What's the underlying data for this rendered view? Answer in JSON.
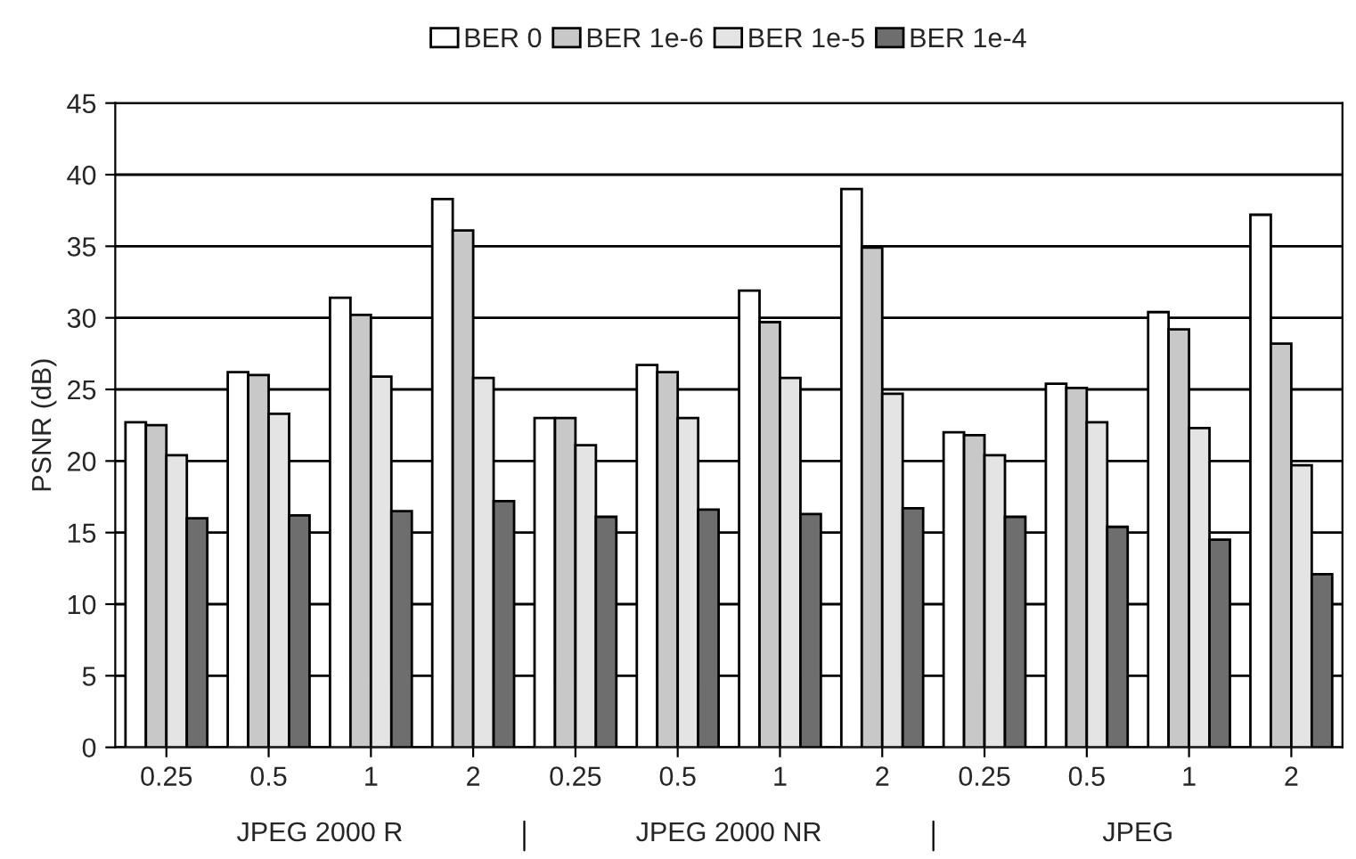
{
  "chart_data": {
    "type": "bar",
    "ylabel": "PSNR (dB)",
    "categories": [
      "0.25",
      "0.5",
      "1",
      "2",
      "0.25",
      "0.5",
      "1",
      "2",
      "0.25",
      "0.5",
      "1",
      "2"
    ],
    "series": [
      {
        "name": "BER 0",
        "color": "#ffffff",
        "values": [
          22.7,
          26.2,
          31.4,
          38.3,
          23.0,
          26.7,
          31.9,
          39.0,
          22.0,
          25.4,
          30.4,
          37.2
        ]
      },
      {
        "name": "BER 1e-6",
        "color": "#c8c8c8",
        "values": [
          22.5,
          26.0,
          30.2,
          36.1,
          23.0,
          26.2,
          29.7,
          34.9,
          21.8,
          25.1,
          29.2,
          28.2
        ]
      },
      {
        "name": "BER 1e-5",
        "color": "#e4e4e4",
        "values": [
          20.4,
          23.3,
          25.9,
          25.8,
          21.1,
          23.0,
          25.8,
          24.7,
          20.4,
          22.7,
          22.3,
          19.7
        ]
      },
      {
        "name": "BER 1e-4",
        "color": "#6e6e6e",
        "values": [
          16.0,
          16.2,
          16.5,
          17.2,
          16.1,
          16.6,
          16.3,
          16.7,
          16.1,
          15.4,
          14.5,
          12.1
        ]
      }
    ],
    "annotations": [
      "JPEG 2000 R",
      "JPEG 2000 NR",
      "JPEG"
    ],
    "ylim": [
      0,
      45
    ],
    "yticks": [
      0,
      5,
      10,
      15,
      20,
      25,
      30,
      35,
      40,
      45
    ],
    "grid": "y",
    "legend": "top"
  }
}
